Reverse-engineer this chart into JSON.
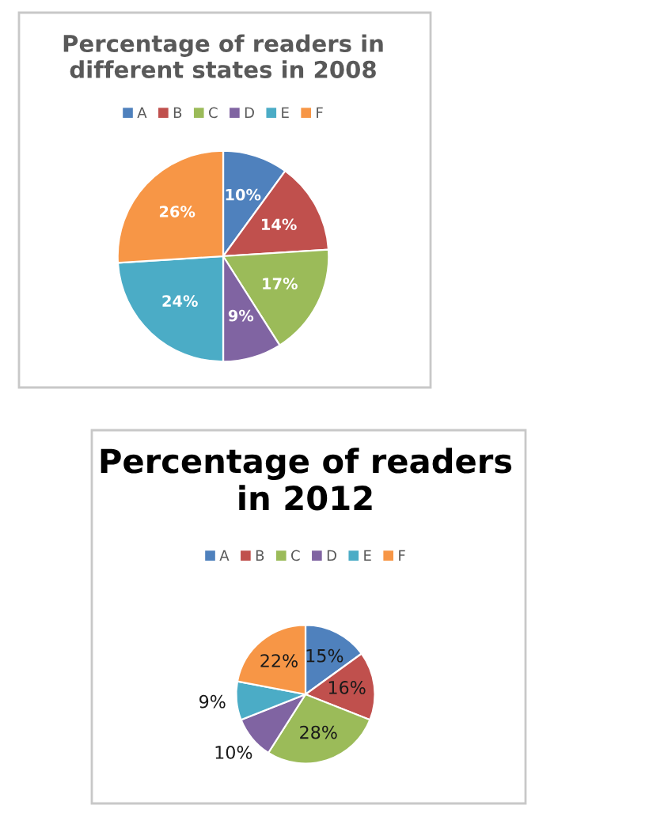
{
  "chart_data": [
    {
      "type": "pie",
      "title": "Percentage of readers in\ndifferent states in 2008",
      "categories": [
        "A",
        "B",
        "C",
        "D",
        "E",
        "F"
      ],
      "values": [
        10,
        14,
        17,
        9,
        24,
        26
      ],
      "value_labels": [
        "10%",
        "14%",
        "17%",
        "9%",
        "24%",
        "26%"
      ],
      "colors": [
        "#4f81bd",
        "#c0504d",
        "#9bbb59",
        "#8064a2",
        "#4bacc6",
        "#f79646"
      ],
      "legend": "top"
    },
    {
      "type": "pie",
      "title": "Percentage of readers\nin 2012",
      "categories": [
        "A",
        "B",
        "C",
        "D",
        "E",
        "F"
      ],
      "values": [
        15,
        16,
        28,
        10,
        9,
        22
      ],
      "value_labels": [
        "15%",
        "16%",
        "28%",
        "10%",
        "9%",
        "22%"
      ],
      "colors": [
        "#4f81bd",
        "#c0504d",
        "#9bbb59",
        "#8064a2",
        "#4bacc6",
        "#f79646"
      ],
      "legend": "top"
    }
  ]
}
